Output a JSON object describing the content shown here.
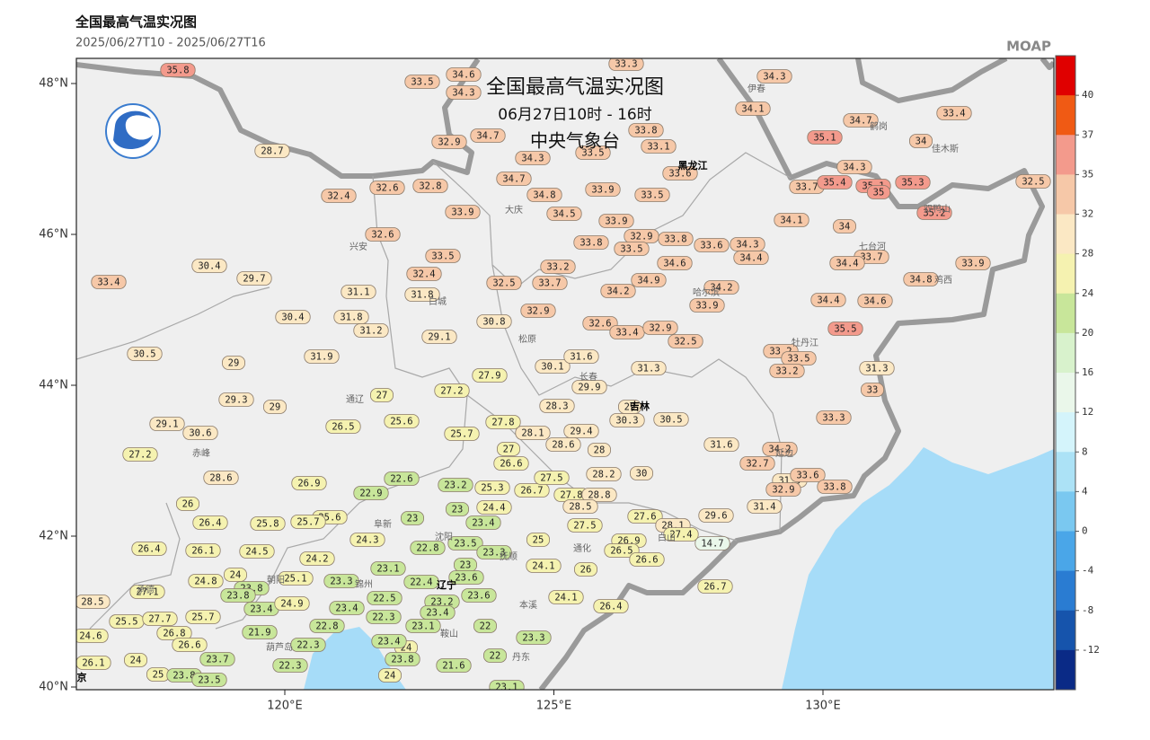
{
  "header": {
    "title": "全国最高气温实况图",
    "period": "2025/06/27T10 - 2025/06/27T16",
    "brand": "MOAP"
  },
  "overlay": {
    "title": "全国最高气温实况图",
    "time": "06月27日10时 - 16时",
    "agency": "中央气象台"
  },
  "axes": {
    "xticks": [
      {
        "value": 120,
        "label": "120°E"
      },
      {
        "value": 125,
        "label": "125°E"
      },
      {
        "value": 130,
        "label": "130°E"
      }
    ],
    "yticks": [
      {
        "value": 48,
        "label": "48°N"
      },
      {
        "value": 46,
        "label": "46°N"
      },
      {
        "value": 44,
        "label": "44°N"
      },
      {
        "value": 42,
        "label": "42°N"
      },
      {
        "value": 40,
        "label": "40°N"
      }
    ]
  },
  "colorbar": {
    "levels": [
      40,
      37,
      35,
      32,
      28,
      24,
      20,
      16,
      12,
      8,
      4,
      0,
      -4,
      -8,
      -12
    ],
    "colors": [
      "#e00000",
      "#f05a14",
      "#f39a8c",
      "#f6c8a8",
      "#fbe8c4",
      "#f5f2b0",
      "#c8e69a",
      "#d8f2cc",
      "#eaf7ea",
      "#d4f4fb",
      "#ace2f6",
      "#7ac8f0",
      "#4aa6e8",
      "#2a7cd2",
      "#1654ac",
      "#0a2a86"
    ]
  },
  "stations": [
    35.8,
    34.6,
    34.3,
    33.5,
    33.3,
    34.3,
    34.1,
    34.7,
    33.4,
    32.9,
    34.7,
    33.8,
    33.1,
    35.1,
    34,
    28.7,
    34.3,
    33.5,
    34.3,
    34.7,
    32.4,
    32.6,
    32.8,
    33.9,
    33.5,
    34.8,
    33.7,
    35.4,
    35.1,
    35,
    35.3,
    32.5,
    33.6,
    33.9,
    34.5,
    33.9,
    34.1,
    34,
    35.2,
    32.6,
    33.8,
    32.9,
    33.5,
    33.8,
    33.6,
    34.3,
    34.4,
    33.7,
    34.4,
    33.9,
    30.4,
    33.5,
    33.2,
    34.6,
    33.4,
    29.7,
    32.4,
    32.5,
    33.7,
    34.9,
    34.2,
    34.8,
    31.1,
    31.8,
    34.2,
    33.9,
    34.4,
    34.6,
    30.4,
    31.8,
    31.2,
    32.9,
    30.8,
    32.6,
    33.4,
    32.9,
    35.5,
    30.5,
    31.9,
    29.1,
    32.5,
    33.2,
    33.5,
    29,
    30.1,
    31.6,
    31.3,
    33.2,
    31.3,
    27.9,
    29.9,
    33,
    29.3,
    29,
    27,
    27.2,
    28.3,
    29,
    30.3,
    30.5,
    33.3,
    29.1,
    30.6,
    26.5,
    25.6,
    27.8,
    28.1,
    29.4,
    25.7,
    28.6,
    28,
    31.6,
    34.2,
    27.2,
    27,
    26.6,
    32.7,
    28.6,
    26.9,
    22.6,
    23.2,
    25.3,
    26.7,
    27.5,
    28.2,
    30,
    31.9,
    33.6,
    32.9,
    33.8,
    22.9,
    27.8,
    28.8,
    28.5,
    26,
    23,
    24.4,
    31.4,
    27.6,
    29.6,
    25.6,
    25.7,
    23,
    23.4,
    27.5,
    28.1,
    26.4,
    25.8,
    27.4,
    24.3,
    22.8,
    23.5,
    25,
    26.9,
    14.7,
    26.4,
    26.1,
    24.5,
    23.3,
    26.5,
    24.2,
    26.6,
    24.1,
    26,
    23.1,
    24,
    25.1,
    23,
    23.3,
    22.4,
    23.6,
    24.8,
    23.8,
    23.8,
    27.1,
    26.7,
    24.1,
    23.6,
    22.5,
    23.2,
    23.4,
    24.9,
    23.4,
    26.4,
    28.5,
    25.5,
    27.7,
    25.7,
    22.3,
    23.1,
    22,
    26.8,
    22.8,
    23.4,
    24.6,
    21.9,
    26.6,
    23.3,
    24,
    22.3,
    23.4,
    23.7,
    24,
    23.8,
    22,
    21.6,
    26.1,
    22.3,
    25,
    23.8,
    23.5,
    24,
    23.1
  ],
  "places": [
    "伊春",
    "鹤岗",
    "佳木斯",
    "黑龙江",
    "大庆",
    "双鸭山",
    "七台河",
    "鸡西",
    "哈尔滨",
    "兴安",
    "白城",
    "松原",
    "牡丹江",
    "长春",
    "吉林",
    "通辽",
    "赤峰",
    "延边",
    "阜新",
    "沈阳",
    "抚顺",
    "通化",
    "白山",
    "朝阳",
    "锦州",
    "辽宁",
    "本溪",
    "鞍山",
    "葫芦岛",
    "丹东",
    "承德",
    "京"
  ]
}
